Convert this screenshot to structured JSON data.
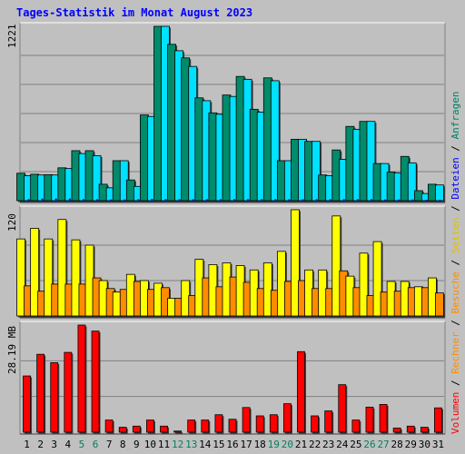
{
  "chart_data": {
    "type": "bar",
    "title": "Tages-Statistik im Monat August 2023",
    "categories": [
      "1",
      "2",
      "3",
      "4",
      "5",
      "6",
      "7",
      "8",
      "9",
      "10",
      "11",
      "12",
      "13",
      "14",
      "15",
      "16",
      "17",
      "18",
      "19",
      "20",
      "21",
      "22",
      "23",
      "24",
      "25",
      "26",
      "27",
      "28",
      "29",
      "30",
      "31"
    ],
    "weekend_days": [
      "5",
      "6",
      "12",
      "13",
      "19",
      "20",
      "26",
      "27"
    ],
    "colors": {
      "background": "#c0c0c0",
      "title": "#0000ff",
      "weekday_tick": "#000000",
      "weekend_tick": "#008060",
      "anfragen": "#008b6b",
      "dateien": "#00e0ff",
      "seiten": "#ffff00",
      "besuche": "#ff8c00",
      "volumen": "#ff0000",
      "rechner": "#ff8c00"
    },
    "panels": [
      {
        "id": "anfragen-dateien",
        "max_label": "1221",
        "ymax": 1221,
        "series": [
          {
            "name": "Anfragen",
            "color": "#008b6b",
            "values": [
              192,
              185,
              182,
              230,
              350,
              350,
              115,
              280,
              145,
              600,
              1221,
              1095,
              1000,
              720,
              615,
              740,
              870,
              640,
              860,
              280,
              430,
              415,
              180,
              355,
              520,
              555,
              260,
              200,
              310,
              70,
              115
            ]
          },
          {
            "name": "Dateien",
            "color": "#00e0ff",
            "values": [
              175,
              180,
              180,
              225,
              330,
              315,
              90,
              280,
              100,
              590,
              1221,
              1050,
              940,
              700,
              605,
              730,
              850,
              620,
              840,
              280,
              430,
              415,
              175,
              290,
              500,
              555,
              260,
              195,
              265,
              50,
              110
            ]
          }
        ],
        "inner_bars": [
          10,
          15,
          15,
          15,
          10,
          10,
          8,
          8,
          10,
          12,
          10,
          10,
          10,
          10,
          10,
          10,
          10,
          10,
          10,
          10,
          10,
          10,
          10,
          10,
          10,
          10,
          8,
          8,
          8,
          6,
          6
        ]
      },
      {
        "id": "seiten-besuche",
        "max_label": "120",
        "ymax": 120,
        "series": [
          {
            "name": "Seiten",
            "color": "#ffff00",
            "values": [
              87,
              99,
              87,
              109,
              86,
              80,
              40,
              27,
              47,
              40,
              37,
              20,
              40,
              64,
              58,
              60,
              57,
              52,
              60,
              73,
              120,
              52,
              52,
              113,
              45,
              71,
              84,
              39,
              39,
              33,
              43
            ]
          },
          {
            "name": "Besuche",
            "color": "#ff8c00",
            "values": [
              34,
              28,
              36,
              36,
              36,
              43,
              31,
              30,
              39,
              30,
              32,
              20,
              23,
              43,
              33,
              44,
              38,
              31,
              29,
              39,
              40,
              31,
              31,
              51,
              32,
              23,
              27,
              28,
              32,
              32,
              26
            ]
          }
        ]
      },
      {
        "id": "volumen",
        "max_label": "28.19 MB",
        "ymax": 28.19,
        "series": [
          {
            "name": "Volumen",
            "color": "#ff0000",
            "values": [
              14.8,
              20.5,
              18.3,
              21.0,
              28.19,
              26.6,
              3.2,
              1.3,
              1.6,
              3.2,
              1.6,
              0.3,
              3.2,
              3.2,
              4.6,
              3.4,
              6.5,
              4.3,
              4.6,
              7.5,
              21.2,
              4.3,
              5.6,
              12.5,
              3.2,
              6.6,
              7.3,
              1.1,
              1.6,
              1.3,
              6.4
            ]
          }
        ]
      }
    ],
    "right_legend": [
      {
        "text": "Volumen",
        "color": "#ff0000"
      },
      {
        "text": " / ",
        "color": "#000000"
      },
      {
        "text": "Rechner",
        "color": "#ff8c00"
      },
      {
        "text": " / ",
        "color": "#000000"
      },
      {
        "text": "Besuche",
        "color": "#ff8c00"
      },
      {
        "text": " / ",
        "color": "#000000"
      },
      {
        "text": "Seiten",
        "color": "#e0c000"
      },
      {
        "text": " / ",
        "color": "#000000"
      },
      {
        "text": "Dateien",
        "color": "#0000ff"
      },
      {
        "text": " / ",
        "color": "#000000"
      },
      {
        "text": "Anfragen",
        "color": "#008060"
      }
    ]
  }
}
